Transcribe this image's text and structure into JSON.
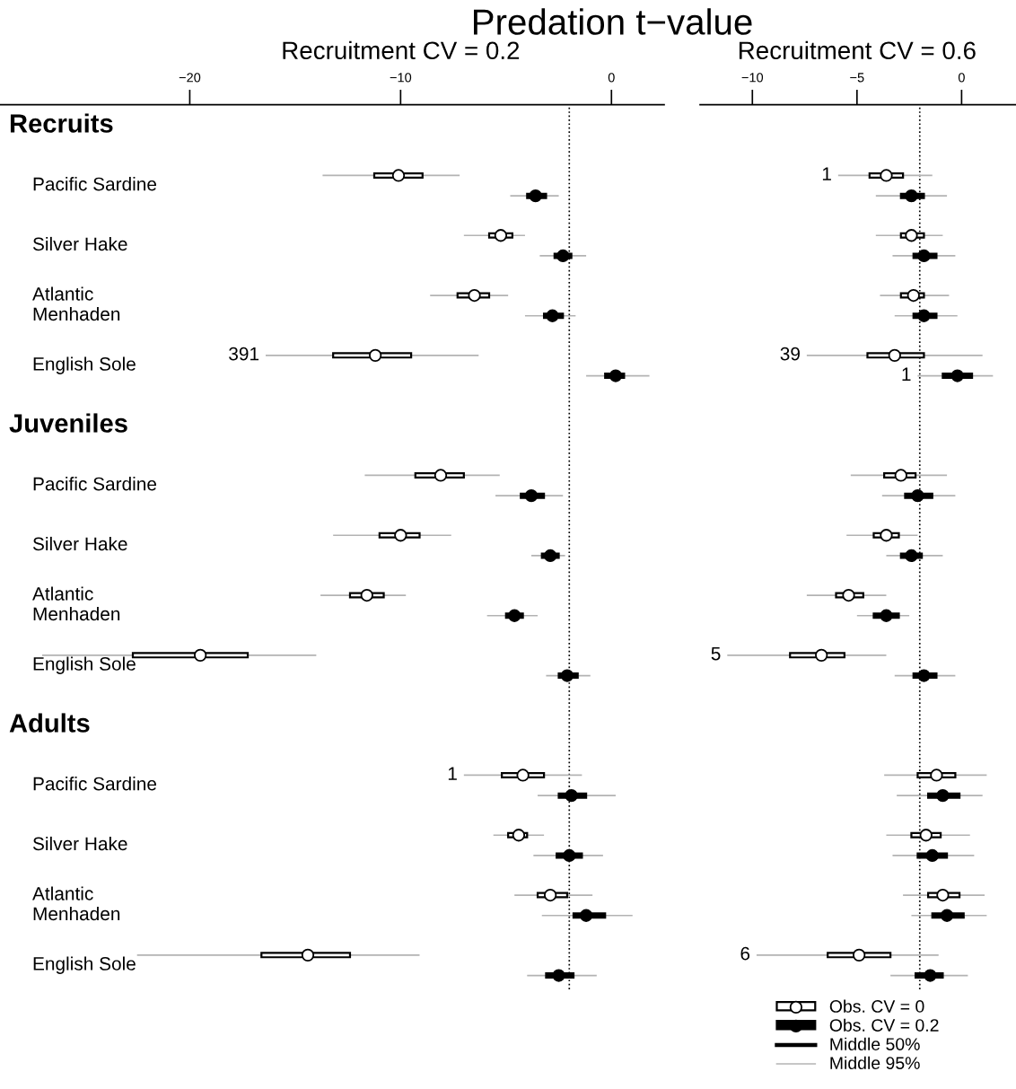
{
  "chart_data": [
    {
      "type": "box",
      "orientation": "horizontal",
      "title": "Predation t−value",
      "subtitle": "Recruitment CV = 0.2",
      "marker": "circle",
      "categories": [
        "Recruits",
        "Pacific Sardine",
        "Silver Hake",
        "Atlantic\nMenhaden",
        "English Sole",
        "Juveniles",
        "Pacific Sardine",
        "Silver Hake",
        "Atlantic\nMenhaden",
        "English Sole",
        "Adults",
        "Pacific Sardine",
        "Silver Hake",
        "Atlantic\nMenhaden",
        "English Sole"
      ],
      "xlim": [
        -29,
        2.5
      ],
      "xticks": [
        {
          "value": -20,
          "label": "−20"
        },
        {
          "value": -10,
          "label": "−10"
        },
        0
      ],
      "ref_lines": [
        {
          "axis": "x",
          "value": -2,
          "line_style": "dotted",
          "color": "#000000"
        }
      ],
      "series": [
        {
          "type": "box",
          "color": "#ffffff",
          "value_labels": [
            null,
            null,
            null,
            null,
            "391",
            null,
            null,
            null,
            null,
            null,
            null,
            "1",
            null,
            null,
            null
          ],
          "boxes": [
            null,
            {
              "low": -13.7,
              "q1": -11.25,
              "median": -10.1,
              "q3": -8.96,
              "high": -7.2
            },
            {
              "low": -7.0,
              "q1": -5.8,
              "median": -5.25,
              "q3": -4.7,
              "high": -4.1
            },
            {
              "low": -8.6,
              "q1": -7.3,
              "median": -6.5,
              "q3": -5.8,
              "high": -4.9
            },
            {
              "low": -16.4,
              "q1": -13.2,
              "median": -11.2,
              "q3": -9.5,
              "high": -6.3
            },
            null,
            {
              "low": -11.7,
              "q1": -9.3,
              "median": -8.1,
              "q3": -7.0,
              "high": -5.3
            },
            {
              "low": -13.2,
              "q1": -11.0,
              "median": -10.0,
              "q3": -9.1,
              "high": -7.6
            },
            {
              "low": -13.8,
              "q1": -12.4,
              "median": -11.6,
              "q3": -10.8,
              "high": -9.75
            },
            {
              "low": -27.0,
              "q1": -22.7,
              "median": -19.5,
              "q3": -17.25,
              "high": -14.0
            },
            null,
            {
              "low": -7.0,
              "q1": -5.2,
              "median": -4.2,
              "q3": -3.2,
              "high": -1.4
            },
            {
              "low": -5.6,
              "q1": -4.9,
              "median": -4.4,
              "q3": -4.0,
              "high": -3.2
            },
            {
              "low": -4.6,
              "q1": -3.5,
              "median": -2.9,
              "q3": -2.1,
              "high": -0.9
            },
            {
              "low": -22.5,
              "q1": -16.6,
              "median": -14.4,
              "q3": -12.4,
              "high": -9.1
            }
          ]
        },
        {
          "type": "line",
          "color": "#000000",
          "values": [
            null,
            null,
            null,
            null,
            null,
            null,
            null,
            null,
            null,
            null,
            null,
            null,
            null,
            null,
            null
          ]
        },
        {
          "type": "line",
          "color": "#b3b3b3",
          "values": [
            null,
            null,
            null,
            null,
            null,
            null,
            null,
            null,
            null,
            null,
            null,
            null,
            null,
            null,
            null
          ]
        },
        {
          "type": "box",
          "color": "#000000",
          "boxes": [
            null,
            {
              "low": -4.8,
              "q1": -4.0,
              "median": -3.6,
              "q3": -3.1,
              "high": -2.5
            },
            {
              "low": -3.4,
              "q1": -2.7,
              "median": -2.3,
              "q3": -1.9,
              "high": -1.2
            },
            {
              "low": -4.1,
              "q1": -3.2,
              "median": -2.8,
              "q3": -2.3,
              "high": -1.7
            },
            {
              "low": -1.2,
              "q1": -0.3,
              "median": 0.2,
              "q3": 0.6,
              "high": 1.8
            },
            null,
            {
              "low": -5.5,
              "q1": -4.3,
              "median": -3.8,
              "q3": -3.2,
              "high": -2.3
            },
            {
              "low": -3.8,
              "q1": -3.3,
              "median": -2.9,
              "q3": -2.5,
              "high": -2.2
            },
            {
              "low": -5.9,
              "q1": -5.0,
              "median": -4.6,
              "q3": -4.2,
              "high": -3.5
            },
            {
              "low": -3.1,
              "q1": -2.5,
              "median": -2.1,
              "q3": -1.6,
              "high": -1.0
            },
            null,
            {
              "low": -3.5,
              "q1": -2.5,
              "median": -1.9,
              "q3": -1.2,
              "high": 0.2
            },
            {
              "low": -3.7,
              "q1": -2.6,
              "median": -2.0,
              "q3": -1.4,
              "high": -0.4
            },
            {
              "low": -3.3,
              "q1": -1.8,
              "median": -1.2,
              "q3": -0.3,
              "high": 1.0
            },
            {
              "low": -4.0,
              "q1": -3.1,
              "median": -2.5,
              "q3": -1.8,
              "high": -0.7
            }
          ]
        }
      ]
    },
    {
      "type": "box",
      "orientation": "horizontal",
      "subtitle": "Recruitment CV = 0.6",
      "tick_labels": "x",
      "legend": "bottom",
      "marker": "circle",
      "categories": [
        null,
        null,
        null,
        null,
        null,
        null,
        null,
        null,
        null,
        null,
        null,
        null,
        null,
        null,
        null
      ],
      "xlim": [
        -12.5,
        2.6
      ],
      "xticks": [
        {
          "value": -10,
          "label": "−10"
        },
        {
          "value": -5,
          "label": "−5"
        },
        0
      ],
      "ref_lines": [
        {
          "axis": "x",
          "value": -2,
          "line_style": "dotted",
          "color": "#000000"
        }
      ],
      "series": [
        {
          "type": "box",
          "name": "Obs. CV = 0",
          "color": "#ffffff",
          "value_labels": [
            null,
            "1",
            null,
            null,
            "39",
            null,
            null,
            null,
            null,
            "5",
            null,
            null,
            null,
            null,
            "6"
          ],
          "boxes": [
            null,
            {
              "low": -5.9,
              "q1": -4.4,
              "median": -3.6,
              "q3": -2.8,
              "high": -1.4
            },
            {
              "low": -4.1,
              "q1": -2.9,
              "median": -2.4,
              "q3": -1.8,
              "high": -0.9
            },
            {
              "low": -3.9,
              "q1": -2.9,
              "median": -2.3,
              "q3": -1.8,
              "high": -0.6
            },
            {
              "low": -7.4,
              "q1": -4.5,
              "median": -3.2,
              "q3": -1.8,
              "high": 1.0
            },
            null,
            {
              "low": -5.3,
              "q1": -3.7,
              "median": -2.9,
              "q3": -2.2,
              "high": -0.7
            },
            {
              "low": -5.5,
              "q1": -4.2,
              "median": -3.6,
              "q3": -3.0,
              "high": -2.1
            },
            {
              "low": -7.4,
              "q1": -6.0,
              "median": -5.4,
              "q3": -4.7,
              "high": -3.6
            },
            {
              "low": -11.2,
              "q1": -8.2,
              "median": -6.7,
              "q3": -5.6,
              "high": -3.6
            },
            null,
            {
              "low": -3.7,
              "q1": -2.1,
              "median": -1.2,
              "q3": -0.3,
              "high": 1.2
            },
            {
              "low": -3.6,
              "q1": -2.4,
              "median": -1.7,
              "q3": -1.0,
              "high": 0.4
            },
            {
              "low": -2.8,
              "q1": -1.6,
              "median": -0.9,
              "q3": -0.1,
              "high": 1.1
            },
            {
              "low": -9.8,
              "q1": -6.4,
              "median": -4.9,
              "q3": -3.4,
              "high": -1.1
            }
          ]
        },
        {
          "type": "box",
          "name": "Obs. CV = 0.2",
          "color": "#000000",
          "value_labels": [
            null,
            null,
            null,
            null,
            "1",
            null,
            null,
            null,
            null,
            null,
            null,
            null,
            null,
            null,
            null
          ],
          "boxes": [
            null,
            {
              "low": -4.1,
              "q1": -2.9,
              "median": -2.4,
              "q3": -1.8,
              "high": -0.7
            },
            {
              "low": -3.3,
              "q1": -2.3,
              "median": -1.8,
              "q3": -1.2,
              "high": -0.3
            },
            {
              "low": -3.2,
              "q1": -2.3,
              "median": -1.8,
              "q3": -1.2,
              "high": -0.2
            },
            {
              "low": -2.1,
              "q1": -0.9,
              "median": -0.2,
              "q3": 0.5,
              "high": 1.5
            },
            null,
            {
              "low": -3.8,
              "q1": -2.7,
              "median": -2.1,
              "q3": -1.4,
              "high": -0.3
            },
            {
              "low": -3.6,
              "q1": -2.9,
              "median": -2.4,
              "q3": -1.9,
              "high": -0.9
            },
            {
              "low": -5.0,
              "q1": -4.2,
              "median": -3.6,
              "q3": -3.0,
              "high": -2.5
            },
            {
              "low": -3.2,
              "q1": -2.3,
              "median": -1.8,
              "q3": -1.2,
              "high": -0.3
            },
            null,
            {
              "low": -3.1,
              "q1": -1.6,
              "median": -0.9,
              "q3": -0.1,
              "high": 1.0
            },
            {
              "low": -3.3,
              "q1": -2.1,
              "median": -1.4,
              "q3": -0.7,
              "high": 0.6
            },
            {
              "low": -2.4,
              "q1": -1.4,
              "median": -0.7,
              "q3": 0.1,
              "high": 1.2
            },
            {
              "low": -3.4,
              "q1": -2.2,
              "median": -1.5,
              "q3": -0.9,
              "high": 0.3
            }
          ]
        },
        {
          "type": "line",
          "name": "Middle 50%",
          "color": "#000000",
          "values": [
            null,
            null,
            null,
            null,
            null,
            null,
            null,
            null,
            null,
            null,
            null,
            null,
            null,
            null,
            null
          ]
        },
        {
          "type": "line",
          "name": "Middle 95%",
          "color": "#b3b3b3",
          "values": [
            null,
            null,
            null,
            null,
            null,
            null,
            null,
            null,
            null,
            null,
            null,
            null,
            null,
            null,
            null
          ]
        }
      ]
    }
  ]
}
